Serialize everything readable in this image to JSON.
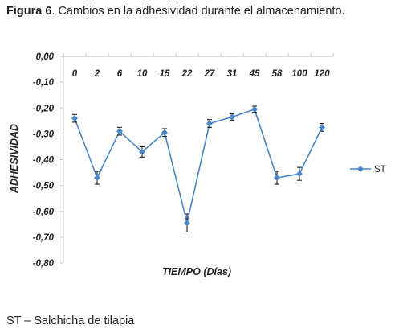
{
  "caption": {
    "label": "Figura 6",
    "text": ". Cambios en la adhesividad durante el almacenamiento."
  },
  "footnote": "ST – Salchicha de tilapia",
  "colors": {
    "series": "#4a86c8",
    "error_bar": "#231f20",
    "axis": "#bfbfbf"
  },
  "chart_data": {
    "type": "line",
    "title": "",
    "xlabel": "TIEMPO (Días)",
    "ylabel": "ADHESIVIDAD",
    "categories": [
      "0",
      "2",
      "6",
      "10",
      "15",
      "22",
      "27",
      "31",
      "45",
      "58",
      "100",
      "120"
    ],
    "series": [
      {
        "name": "ST",
        "values": [
          -0.24,
          -0.47,
          -0.29,
          -0.37,
          -0.295,
          -0.645,
          -0.26,
          -0.235,
          -0.205,
          -0.47,
          -0.455,
          -0.275
        ],
        "errors": [
          0.015,
          0.025,
          0.015,
          0.02,
          0.015,
          0.035,
          0.015,
          0.012,
          0.012,
          0.025,
          0.025,
          0.015
        ]
      }
    ],
    "yticks": [
      "0,00",
      "-0,10",
      "-0,20",
      "-0,30",
      "-0,40",
      "-0,50",
      "-0,60",
      "-0,70",
      "-0,80"
    ],
    "ylim": [
      -0.8,
      0
    ],
    "grid": false,
    "legend": "right",
    "x_axis_position": "top"
  }
}
